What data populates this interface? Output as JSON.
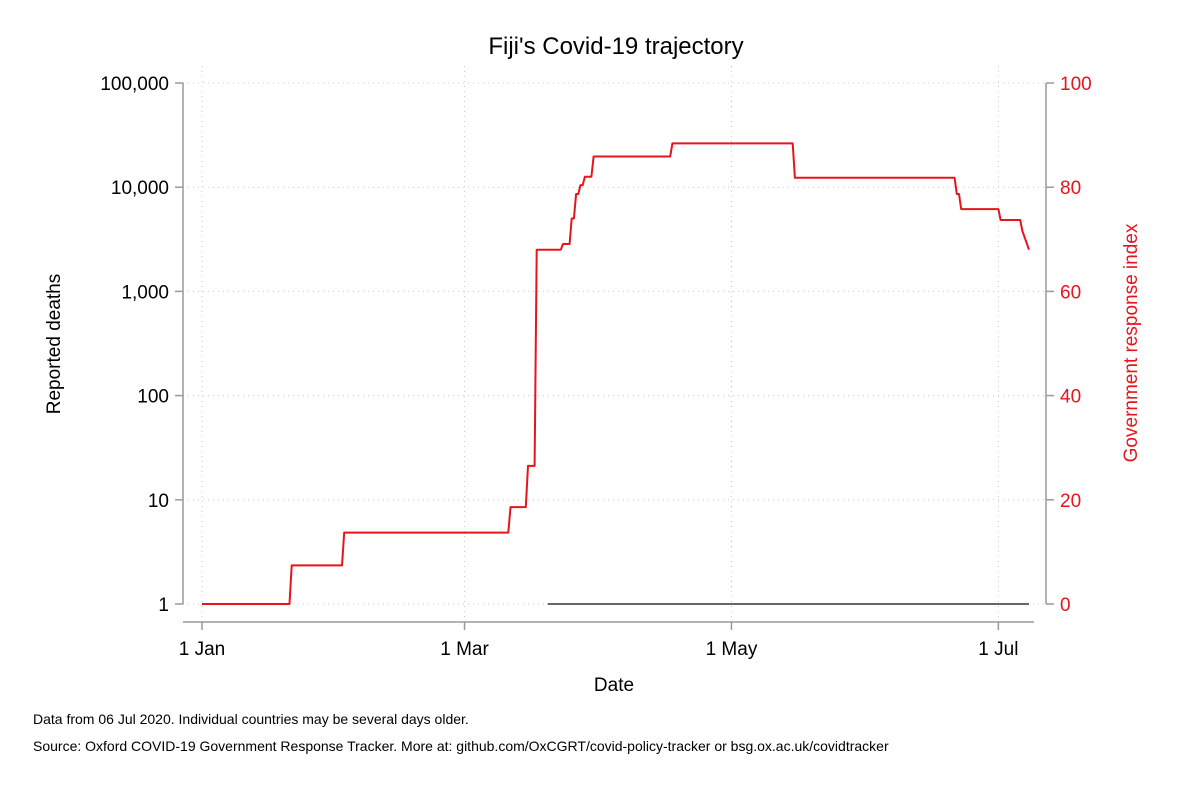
{
  "chart_data": {
    "type": "line",
    "title": "Fiji's Covid-19 trajectory",
    "xlabel": "Date",
    "ylabel": "Reported deaths",
    "y2label": "Government response index",
    "x_ticks": [
      "1 Jan",
      "1 Mar",
      "1 May",
      "1 Jul"
    ],
    "x_tick_days": [
      0,
      60,
      121,
      182
    ],
    "x_range": [
      0,
      189
    ],
    "y_scale": "log",
    "y_ticks": [
      "1",
      "10",
      "100",
      "1,000",
      "10,000",
      "100,000"
    ],
    "y_tick_values": [
      1,
      10,
      100,
      1000,
      10000,
      100000
    ],
    "y_range": [
      1,
      100000
    ],
    "y2_ticks": [
      "0",
      "20",
      "40",
      "60",
      "80",
      "100"
    ],
    "y2_tick_values": [
      0,
      20,
      40,
      60,
      80,
      100
    ],
    "y2_range": [
      0,
      100
    ],
    "grid": true,
    "colors": {
      "deaths": "#666666",
      "response": "#e8141c"
    },
    "series": [
      {
        "axis": "left",
        "x": [
          79,
          189
        ],
        "values": [
          1,
          1
        ]
      },
      {
        "axis": "right",
        "x": [
          0,
          20,
          20.5,
          32,
          32.5,
          70,
          70.5,
          74,
          74.5,
          76,
          76.5,
          78,
          78.5,
          79,
          79.5,
          82,
          82.5,
          84,
          84.5,
          85,
          85.5,
          86,
          86.5,
          87,
          87.5,
          89,
          89.5,
          107,
          107.5,
          135,
          135.5,
          172,
          172.5,
          173,
          173.5,
          182,
          182.5,
          187,
          187.5,
          189
        ],
        "values": [
          0,
          0,
          7.4,
          7.4,
          13.7,
          13.7,
          18.6,
          18.6,
          26.5,
          26.5,
          68,
          68,
          68,
          68,
          68,
          68,
          69.1,
          69.1,
          74,
          74,
          78.7,
          78.7,
          80.4,
          80.4,
          82,
          82,
          85.9,
          85.9,
          88.4,
          88.4,
          81.8,
          81.8,
          78.7,
          78.7,
          75.8,
          75.8,
          73.7,
          73.7,
          71.6,
          68
        ]
      }
    ],
    "notes": [
      "Data from 06 Jul 2020. Individual countries may be several days older.",
      "Source: Oxford COVID-19 Government Response Tracker. More at: github.com/OxCGRT/covid-policy-tracker or bsg.ox.ac.uk/covidtracker"
    ]
  }
}
